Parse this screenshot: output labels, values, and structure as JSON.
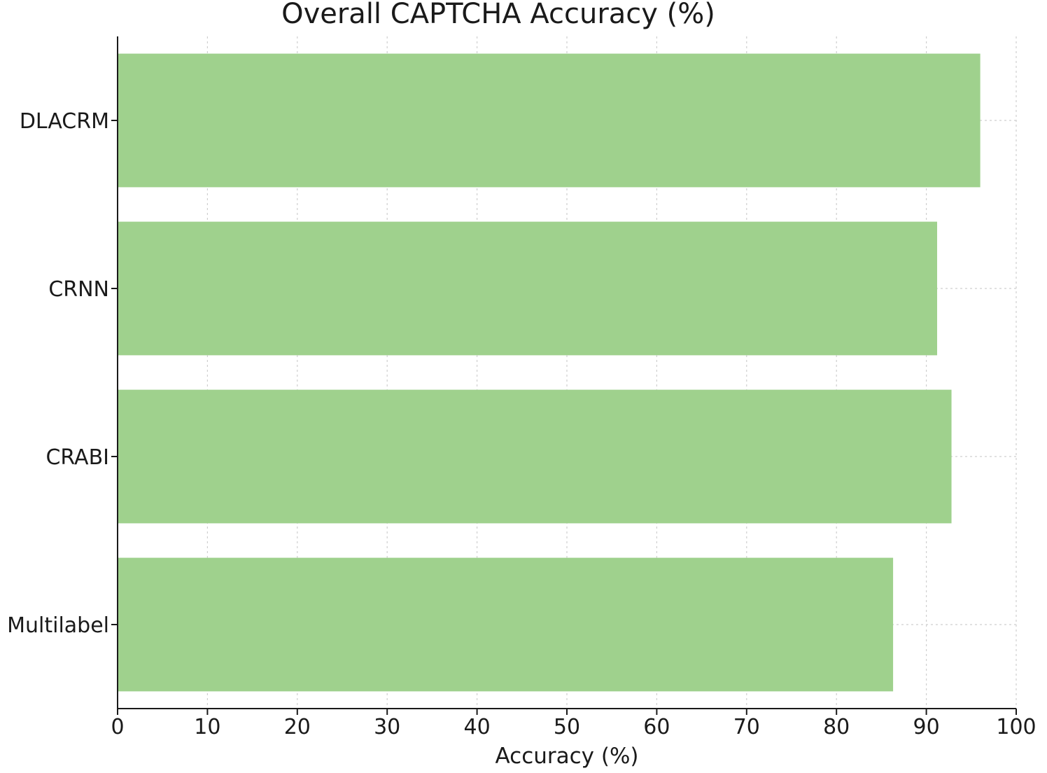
{
  "chart_data": {
    "type": "bar",
    "orientation": "horizontal",
    "title": "Overall CAPTCHA Accuracy (%)",
    "xlabel": "Accuracy (%)",
    "ylabel": "",
    "categories": [
      "DLACRM",
      "CRNN",
      "CRABI",
      "Multilabel"
    ],
    "values": [
      96,
      91.2,
      92.8,
      86.3
    ],
    "xlim": [
      0,
      100
    ],
    "xticks": [
      0,
      10,
      20,
      30,
      40,
      50,
      60,
      70,
      80,
      90,
      100
    ],
    "grid": true,
    "bar_color": "#9fd18d"
  }
}
